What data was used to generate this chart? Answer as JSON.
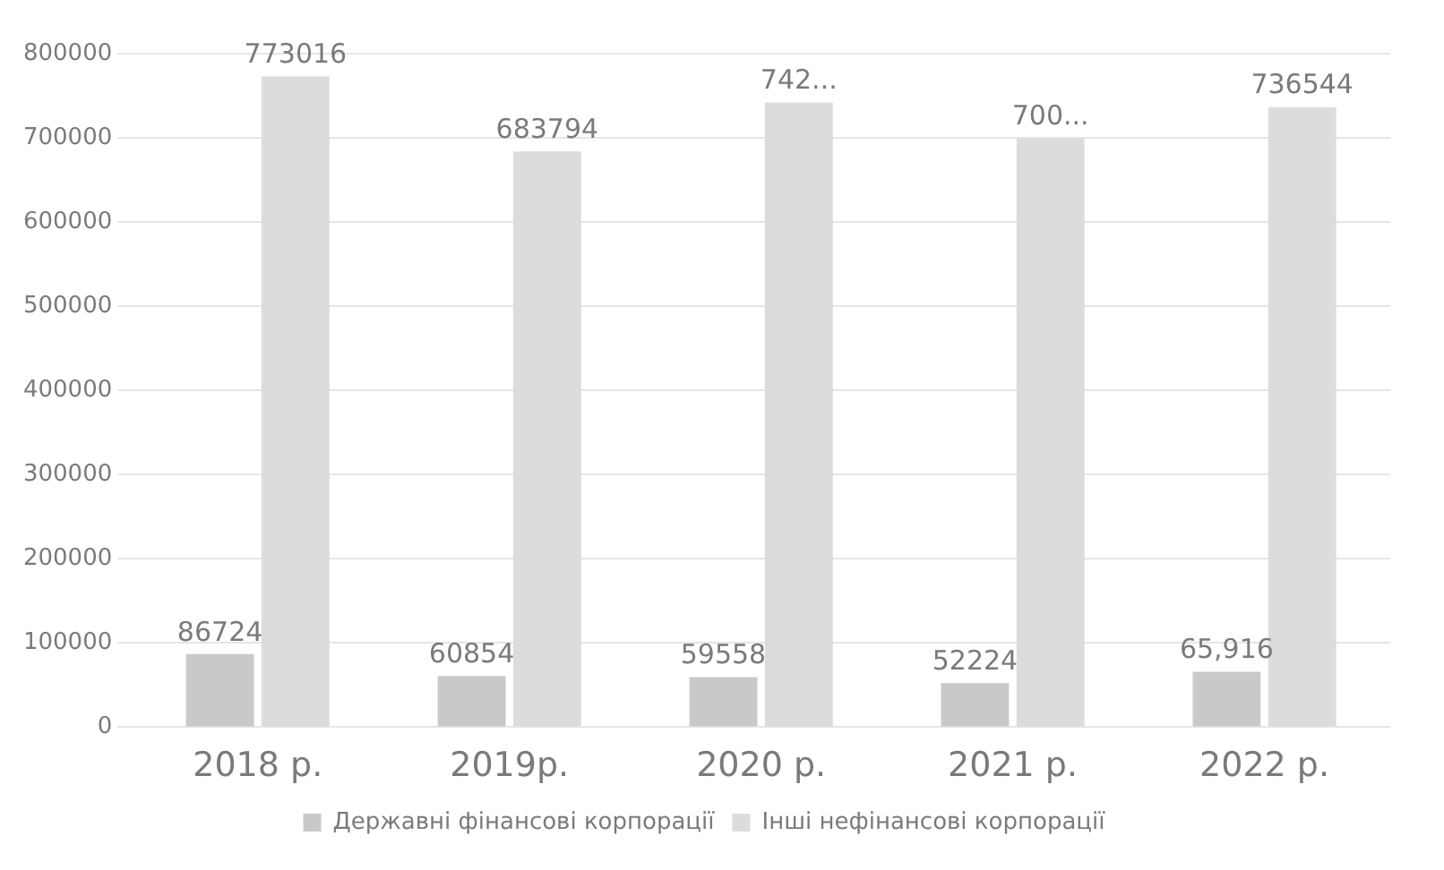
{
  "chart_data": {
    "type": "bar",
    "categories": [
      "2018 р.",
      "2019р.",
      "2020 р.",
      "2021 р.",
      "2022 р."
    ],
    "series": [
      {
        "name": "Державні фінансові корпорації",
        "color": "#c9c9c9",
        "values": [
          86724,
          60854,
          59558,
          52224,
          65916
        ],
        "value_labels": [
          "86724",
          "60854",
          "59558",
          "52224",
          "65,916"
        ]
      },
      {
        "name": "Інші нефінансові корпорації",
        "color": "#dcdcdc",
        "values": [
          773016,
          683794,
          742000,
          700000,
          736544
        ],
        "value_labels": [
          "773016",
          "683794",
          "742...",
          "700...",
          "736544"
        ]
      }
    ],
    "ylim": [
      0,
      800000
    ],
    "yticks": [
      0,
      100000,
      200000,
      300000,
      400000,
      500000,
      600000,
      700000,
      800000
    ],
    "grid": "y",
    "legend": "bottom"
  }
}
